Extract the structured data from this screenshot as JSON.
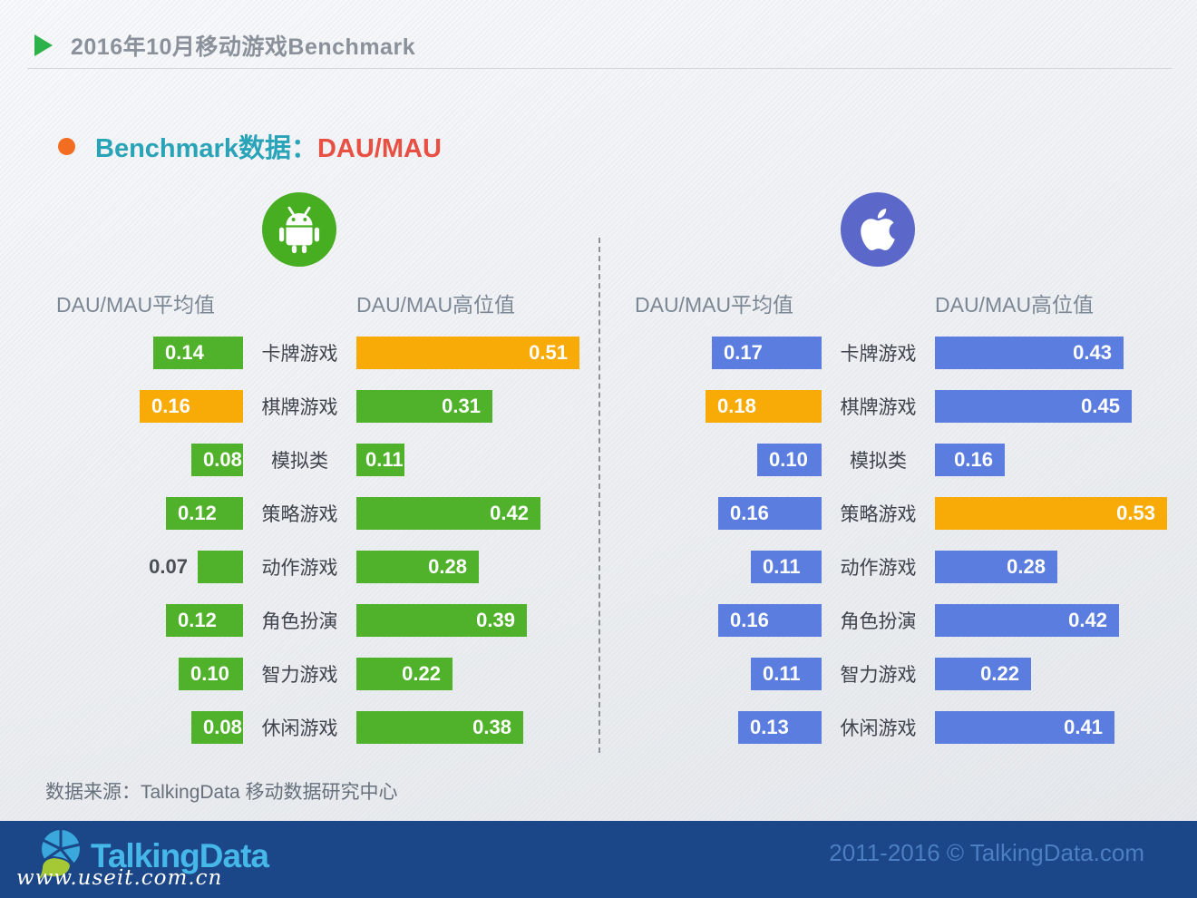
{
  "header": {
    "title": "2016年10月移动游戏Benchmark"
  },
  "section": {
    "title_main": "Benchmark数据：",
    "title_accent": "DAU/MAU"
  },
  "column_headers": {
    "avg": "DAU/MAU平均值",
    "high": "DAU/MAU高位值"
  },
  "categories": [
    "卡牌游戏",
    "棋牌游戏",
    "模拟类",
    "策略游戏",
    "动作游戏",
    "角色扮演",
    "智力游戏",
    "休闲游戏"
  ],
  "chart_data": [
    {
      "type": "bar",
      "orientation": "horizontal",
      "platform": "Android",
      "title": "Android DAU/MAU Benchmark",
      "categories": [
        "卡牌游戏",
        "棋牌游戏",
        "模拟类",
        "策略游戏",
        "动作游戏",
        "角色扮演",
        "智力游戏",
        "休闲游戏"
      ],
      "series": [
        {
          "name": "DAU/MAU平均值",
          "values": [
            0.14,
            0.16,
            0.08,
            0.12,
            0.07,
            0.12,
            0.1,
            0.08
          ],
          "highlight_index": 1
        },
        {
          "name": "DAU/MAU高位值",
          "values": [
            0.51,
            0.31,
            0.11,
            0.42,
            0.28,
            0.39,
            0.22,
            0.38
          ],
          "highlight_index": 0
        }
      ],
      "xlim": [
        0,
        0.55
      ],
      "grid": false,
      "axes_hidden": true,
      "data_labels": true
    },
    {
      "type": "bar",
      "orientation": "horizontal",
      "platform": "iOS",
      "title": "iOS DAU/MAU Benchmark",
      "categories": [
        "卡牌游戏",
        "棋牌游戏",
        "模拟类",
        "策略游戏",
        "动作游戏",
        "角色扮演",
        "智力游戏",
        "休闲游戏"
      ],
      "series": [
        {
          "name": "DAU/MAU平均值",
          "values": [
            0.17,
            0.18,
            0.1,
            0.16,
            0.11,
            0.16,
            0.11,
            0.13
          ],
          "highlight_index": 1
        },
        {
          "name": "DAU/MAU高位值",
          "values": [
            0.43,
            0.45,
            0.16,
            0.53,
            0.28,
            0.42,
            0.22,
            0.41
          ],
          "highlight_index": 3
        }
      ],
      "xlim": [
        0,
        0.55
      ],
      "grid": false,
      "axes_hidden": true,
      "data_labels": true
    }
  ],
  "colors": {
    "android_bar": "#4fb22a",
    "ios_bar": "#5b7de0",
    "highlight_bar": "#f8ab07",
    "android_icon_bg": "#47ae22",
    "ios_icon_bg": "#5c68c9",
    "accent_red": "#e85043",
    "accent_teal": "#28a3b8",
    "footer_bg": "#1b4687"
  },
  "source": "数据来源：TalkingData 移动数据研究中心",
  "footer": {
    "logo_text": "TalkingData",
    "watermark": "www.useit.com.cn",
    "copyright": "2011-2016 © TalkingData.com"
  }
}
